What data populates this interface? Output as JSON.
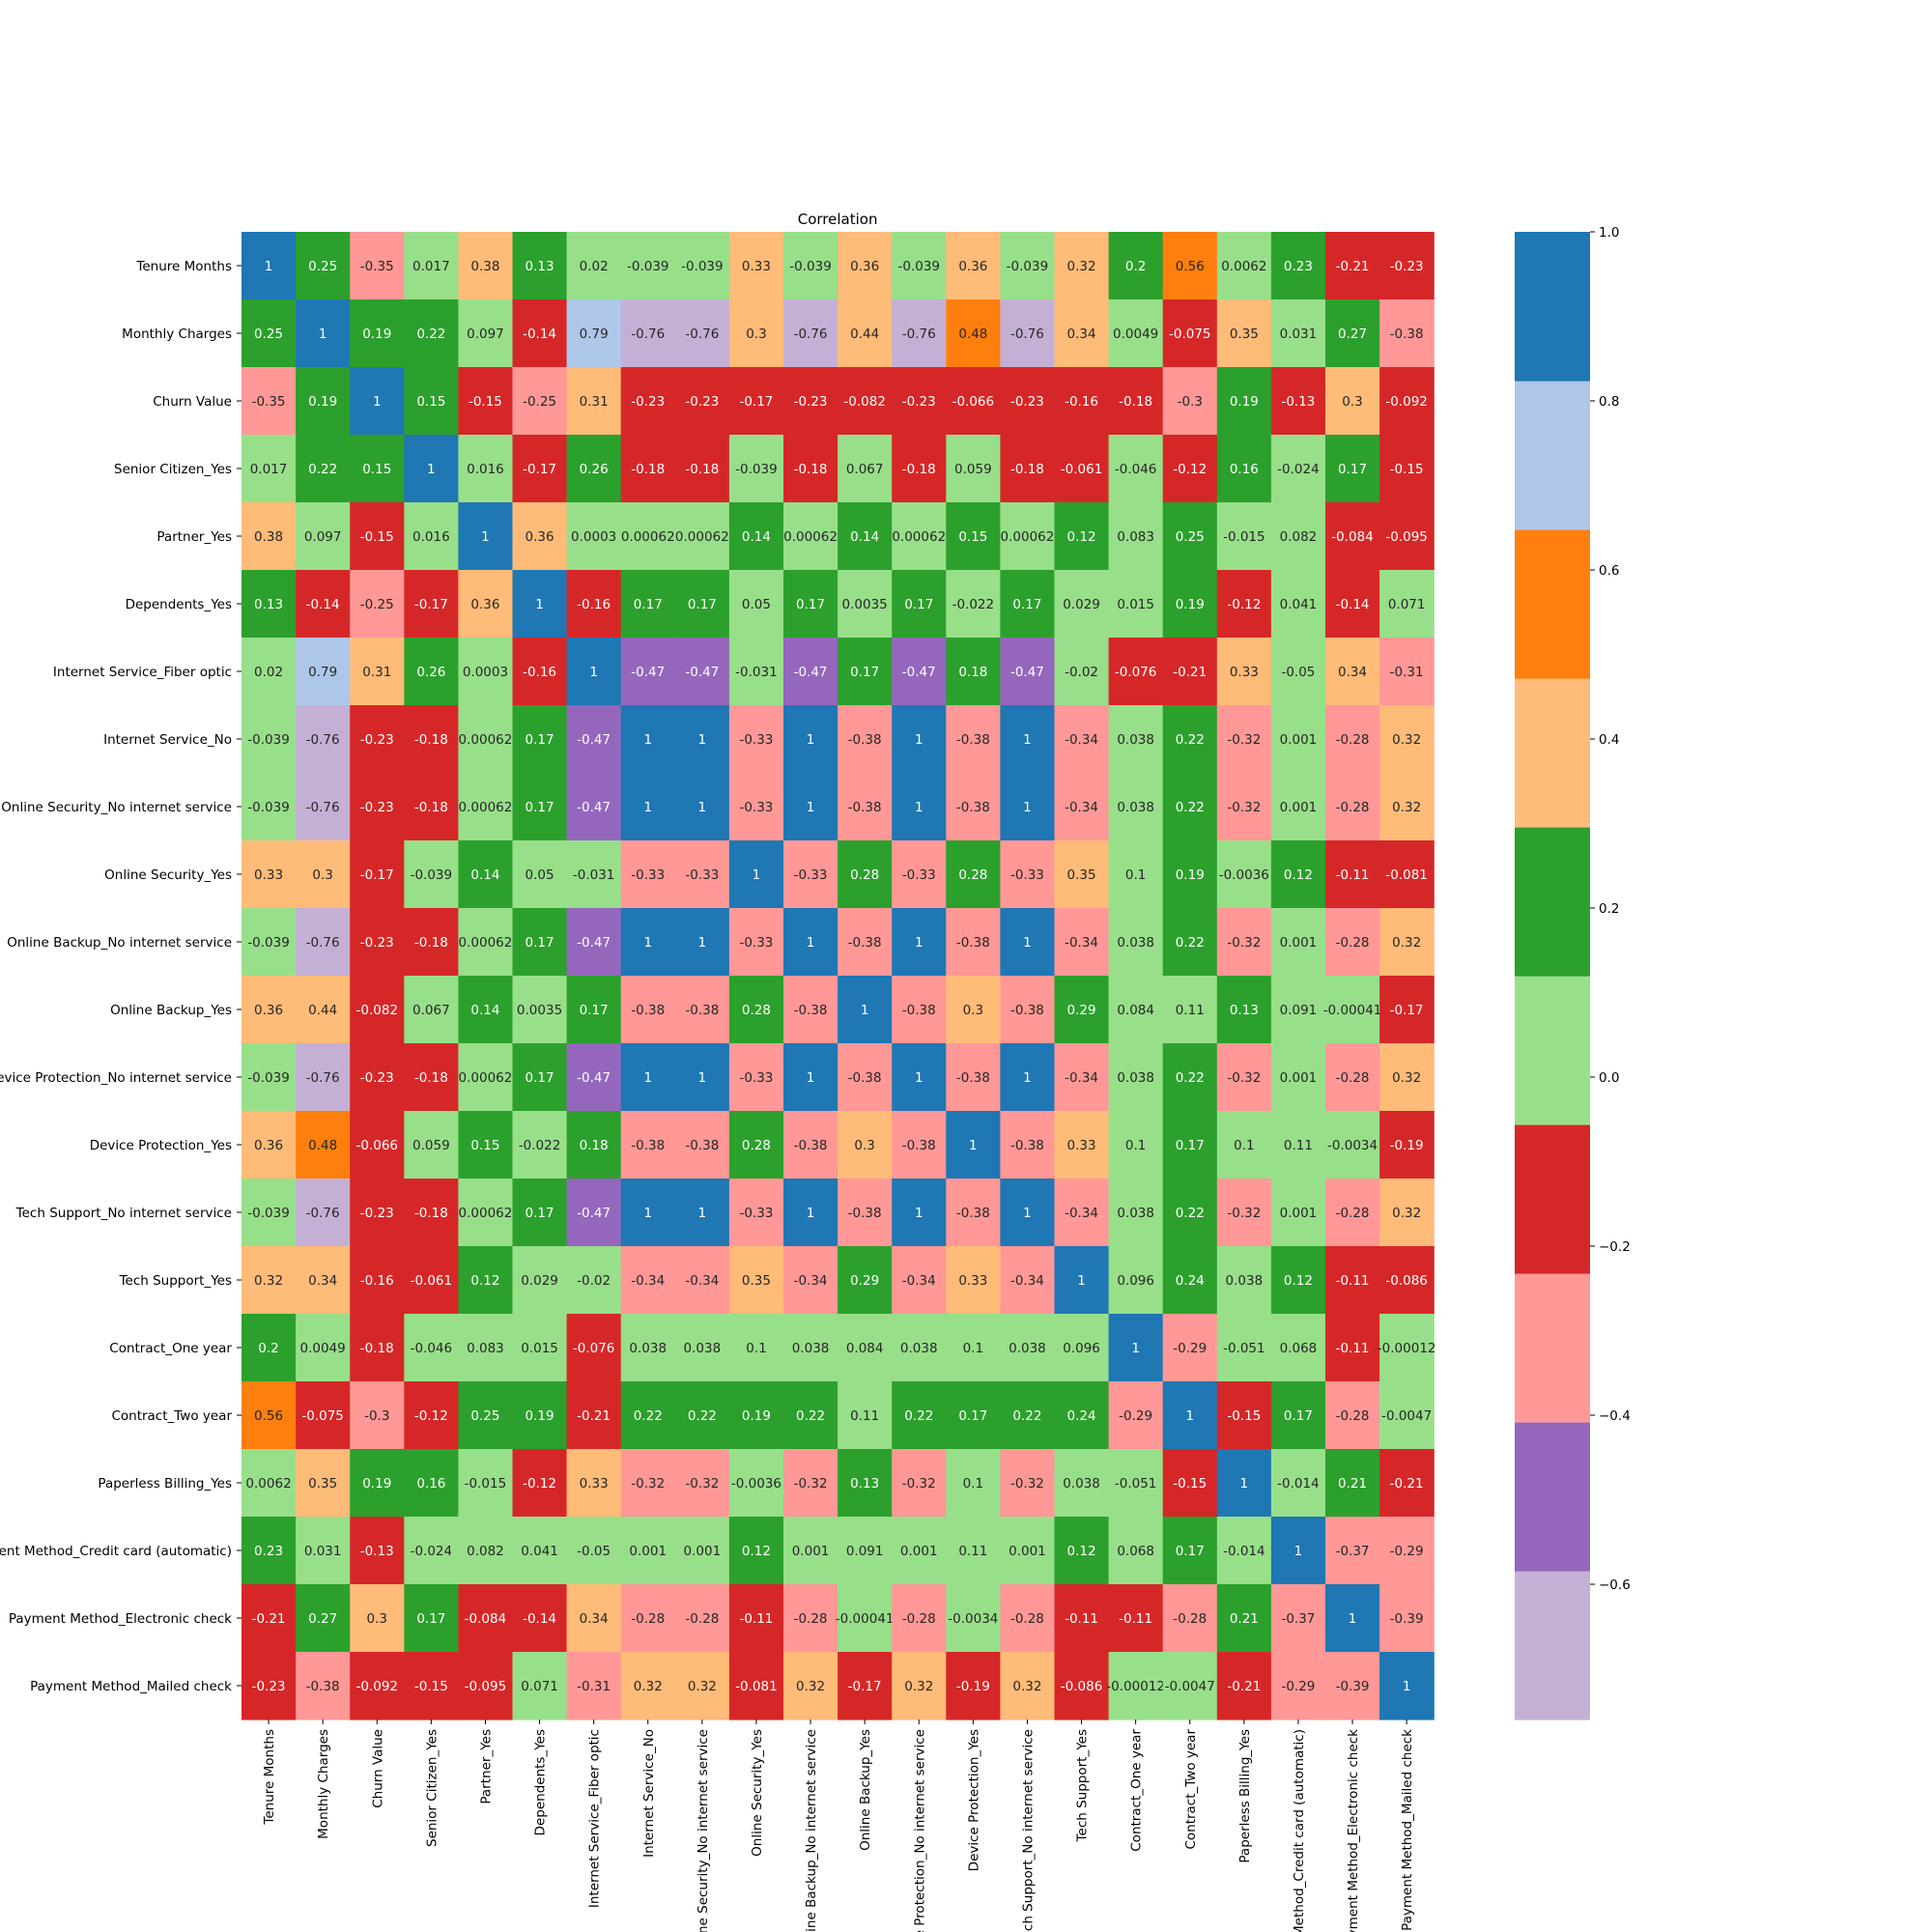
{
  "chart_data": {
    "type": "heatmap",
    "title": "Correlation",
    "labels": [
      "Tenure Months",
      "Monthly Charges",
      "Churn Value",
      "Senior Citizen_Yes",
      "Partner_Yes",
      "Dependents_Yes",
      "Internet Service_Fiber optic",
      "Internet Service_No",
      "Online Security_No internet service",
      "Online Security_Yes",
      "Online Backup_No internet service",
      "Online Backup_Yes",
      "Device Protection_No internet service",
      "Device Protection_Yes",
      "Tech Support_No internet service",
      "Tech Support_Yes",
      "Contract_One year",
      "Contract_Two year",
      "Paperless Billing_Yes",
      "Payment Method_Credit card (automatic)",
      "Payment Method_Electronic check",
      "Payment Method_Mailed check"
    ],
    "annotations": [
      [
        "1",
        "0.25",
        "-0.35",
        "0.017",
        "0.38",
        "0.13",
        "0.02",
        "-0.039",
        "-0.039",
        "0.33",
        "-0.039",
        "0.36",
        "-0.039",
        "0.36",
        "-0.039",
        "0.32",
        "0.2",
        "0.56",
        "0.0062",
        "0.23",
        "-0.21",
        "-0.23"
      ],
      [
        "0.25",
        "1",
        "0.19",
        "0.22",
        "0.097",
        "-0.14",
        "0.79",
        "-0.76",
        "-0.76",
        "0.3",
        "-0.76",
        "0.44",
        "-0.76",
        "0.48",
        "-0.76",
        "0.34",
        "0.0049",
        "-0.075",
        "0.35",
        "0.031",
        "0.27",
        "-0.38"
      ],
      [
        "-0.35",
        "0.19",
        "1",
        "0.15",
        "-0.15",
        "-0.25",
        "0.31",
        "-0.23",
        "-0.23",
        "-0.17",
        "-0.23",
        "-0.082",
        "-0.23",
        "-0.066",
        "-0.23",
        "-0.16",
        "-0.18",
        "-0.3",
        "0.19",
        "-0.13",
        "0.3",
        "-0.092"
      ],
      [
        "0.017",
        "0.22",
        "0.15",
        "1",
        "0.016",
        "-0.17",
        "0.26",
        "-0.18",
        "-0.18",
        "-0.039",
        "-0.18",
        "0.067",
        "-0.18",
        "0.059",
        "-0.18",
        "-0.061",
        "-0.046",
        "-0.12",
        "0.16",
        "-0.024",
        "0.17",
        "-0.15"
      ],
      [
        "0.38",
        "0.097",
        "-0.15",
        "0.016",
        "1",
        "0.36",
        "0.0003",
        "0.00062",
        "0.00062",
        "0.14",
        "0.00062",
        "0.14",
        "0.00062",
        "0.15",
        "0.00062",
        "0.12",
        "0.083",
        "0.25",
        "-0.015",
        "0.082",
        "-0.084",
        "-0.095"
      ],
      [
        "0.13",
        "-0.14",
        "-0.25",
        "-0.17",
        "0.36",
        "1",
        "-0.16",
        "0.17",
        "0.17",
        "0.05",
        "0.17",
        "0.0035",
        "0.17",
        "-0.022",
        "0.17",
        "0.029",
        "0.015",
        "0.19",
        "-0.12",
        "0.041",
        "-0.14",
        "0.071"
      ],
      [
        "0.02",
        "0.79",
        "0.31",
        "0.26",
        "0.0003",
        "-0.16",
        "1",
        "-0.47",
        "-0.47",
        "-0.031",
        "-0.47",
        "0.17",
        "-0.47",
        "0.18",
        "-0.47",
        "-0.02",
        "-0.076",
        "-0.21",
        "0.33",
        "-0.05",
        "0.34",
        "-0.31"
      ],
      [
        "-0.039",
        "-0.76",
        "-0.23",
        "-0.18",
        "0.00062",
        "0.17",
        "-0.47",
        "1",
        "1",
        "-0.33",
        "1",
        "-0.38",
        "1",
        "-0.38",
        "1",
        "-0.34",
        "0.038",
        "0.22",
        "-0.32",
        "0.001",
        "-0.28",
        "0.32"
      ],
      [
        "-0.039",
        "-0.76",
        "-0.23",
        "-0.18",
        "0.00062",
        "0.17",
        "-0.47",
        "1",
        "1",
        "-0.33",
        "1",
        "-0.38",
        "1",
        "-0.38",
        "1",
        "-0.34",
        "0.038",
        "0.22",
        "-0.32",
        "0.001",
        "-0.28",
        "0.32"
      ],
      [
        "0.33",
        "0.3",
        "-0.17",
        "-0.039",
        "0.14",
        "0.05",
        "-0.031",
        "-0.33",
        "-0.33",
        "1",
        "-0.33",
        "0.28",
        "-0.33",
        "0.28",
        "-0.33",
        "0.35",
        "0.1",
        "0.19",
        "-0.0036",
        "0.12",
        "-0.11",
        "-0.081"
      ],
      [
        "-0.039",
        "-0.76",
        "-0.23",
        "-0.18",
        "0.00062",
        "0.17",
        "-0.47",
        "1",
        "1",
        "-0.33",
        "1",
        "-0.38",
        "1",
        "-0.38",
        "1",
        "-0.34",
        "0.038",
        "0.22",
        "-0.32",
        "0.001",
        "-0.28",
        "0.32"
      ],
      [
        "0.36",
        "0.44",
        "-0.082",
        "0.067",
        "0.14",
        "0.0035",
        "0.17",
        "-0.38",
        "-0.38",
        "0.28",
        "-0.38",
        "1",
        "-0.38",
        "0.3",
        "-0.38",
        "0.29",
        "0.084",
        "0.11",
        "0.13",
        "0.091",
        "-0.00041",
        "-0.17"
      ],
      [
        "-0.039",
        "-0.76",
        "-0.23",
        "-0.18",
        "0.00062",
        "0.17",
        "-0.47",
        "1",
        "1",
        "-0.33",
        "1",
        "-0.38",
        "1",
        "-0.38",
        "1",
        "-0.34",
        "0.038",
        "0.22",
        "-0.32",
        "0.001",
        "-0.28",
        "0.32"
      ],
      [
        "0.36",
        "0.48",
        "-0.066",
        "0.059",
        "0.15",
        "-0.022",
        "0.18",
        "-0.38",
        "-0.38",
        "0.28",
        "-0.38",
        "0.3",
        "-0.38",
        "1",
        "-0.38",
        "0.33",
        "0.1",
        "0.17",
        "0.1",
        "0.11",
        "-0.0034",
        "-0.19"
      ],
      [
        "-0.039",
        "-0.76",
        "-0.23",
        "-0.18",
        "0.00062",
        "0.17",
        "-0.47",
        "1",
        "1",
        "-0.33",
        "1",
        "-0.38",
        "1",
        "-0.38",
        "1",
        "-0.34",
        "0.038",
        "0.22",
        "-0.32",
        "0.001",
        "-0.28",
        "0.32"
      ],
      [
        "0.32",
        "0.34",
        "-0.16",
        "-0.061",
        "0.12",
        "0.029",
        "-0.02",
        "-0.34",
        "-0.34",
        "0.35",
        "-0.34",
        "0.29",
        "-0.34",
        "0.33",
        "-0.34",
        "1",
        "0.096",
        "0.24",
        "0.038",
        "0.12",
        "-0.11",
        "-0.086"
      ],
      [
        "0.2",
        "0.0049",
        "-0.18",
        "-0.046",
        "0.083",
        "0.015",
        "-0.076",
        "0.038",
        "0.038",
        "0.1",
        "0.038",
        "0.084",
        "0.038",
        "0.1",
        "0.038",
        "0.096",
        "1",
        "-0.29",
        "-0.051",
        "0.068",
        "-0.11",
        "-0.00012"
      ],
      [
        "0.56",
        "-0.075",
        "-0.3",
        "-0.12",
        "0.25",
        "0.19",
        "-0.21",
        "0.22",
        "0.22",
        "0.19",
        "0.22",
        "0.11",
        "0.22",
        "0.17",
        "0.22",
        "0.24",
        "-0.29",
        "1",
        "-0.15",
        "0.17",
        "-0.28",
        "-0.0047"
      ],
      [
        "0.0062",
        "0.35",
        "0.19",
        "0.16",
        "-0.015",
        "-0.12",
        "0.33",
        "-0.32",
        "-0.32",
        "-0.0036",
        "-0.32",
        "0.13",
        "-0.32",
        "0.1",
        "-0.32",
        "0.038",
        "-0.051",
        "-0.15",
        "1",
        "-0.014",
        "0.21",
        "-0.21"
      ],
      [
        "0.23",
        "0.031",
        "-0.13",
        "-0.024",
        "0.082",
        "0.041",
        "-0.05",
        "0.001",
        "0.001",
        "0.12",
        "0.001",
        "0.091",
        "0.001",
        "0.11",
        "0.001",
        "0.12",
        "0.068",
        "0.17",
        "-0.014",
        "1",
        "-0.37",
        "-0.29"
      ],
      [
        "-0.21",
        "0.27",
        "0.3",
        "0.17",
        "-0.084",
        "-0.14",
        "0.34",
        "-0.28",
        "-0.28",
        "-0.11",
        "-0.28",
        "-0.00041",
        "-0.28",
        "-0.0034",
        "-0.28",
        "-0.11",
        "-0.11",
        "-0.28",
        "0.21",
        "-0.37",
        "1",
        "-0.39"
      ],
      [
        "-0.23",
        "-0.38",
        "-0.092",
        "-0.15",
        "-0.095",
        "0.071",
        "-0.31",
        "0.32",
        "0.32",
        "-0.081",
        "0.32",
        "-0.17",
        "0.32",
        "-0.19",
        "0.32",
        "-0.086",
        "-0.00012",
        "-0.0047",
        "-0.21",
        "-0.29",
        "-0.39",
        "1"
      ]
    ],
    "colorbar": {
      "vmin": -0.76,
      "vmax": 1.0,
      "ticks": [
        1.0,
        0.8,
        0.6,
        0.4,
        0.2,
        0.0,
        -0.2,
        -0.4,
        -0.6
      ],
      "tick_labels": [
        "1.0",
        "0.8",
        "0.6",
        "0.4",
        "0.2",
        "0.0",
        "−0.2",
        "−0.4",
        "−0.6"
      ],
      "colors": [
        "#c5b0d5",
        "#9467bd",
        "#ff9896",
        "#d62728",
        "#98df8a",
        "#2ca02c",
        "#ffbb78",
        "#ff7f0e",
        "#aec7e8",
        "#1f77b4"
      ]
    },
    "grid": false,
    "legend": "right"
  }
}
